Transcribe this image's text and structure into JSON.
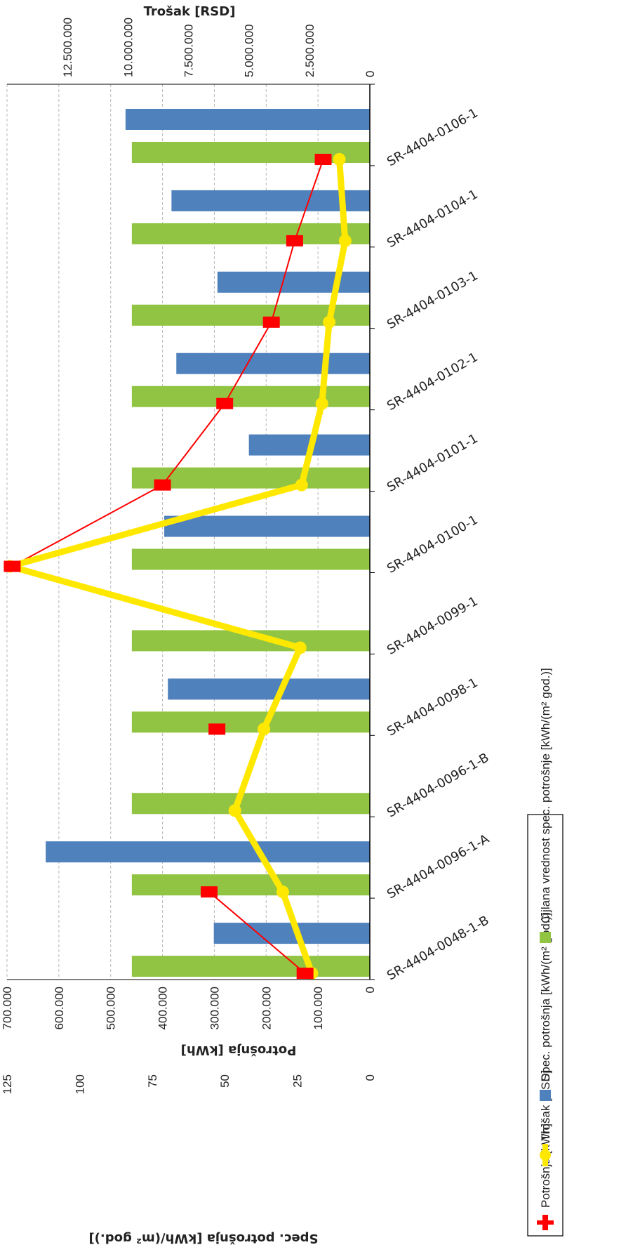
{
  "chart_data": {
    "type": "bar",
    "orientation": "horizontal",
    "axes": {
      "potrosnja": {
        "title": "Potrošnja [kWh]",
        "range": [
          0,
          700000
        ],
        "ticks": [
          "0",
          "100.000",
          "200.000",
          "300.000",
          "400.000",
          "500.000",
          "600.000",
          "700.000"
        ]
      },
      "spec": {
        "title": "Spec. potrošnja [kWh/(m² god.)]",
        "range": [
          0,
          125
        ],
        "ticks": [
          "0",
          "25",
          "50",
          "75",
          "100",
          "125"
        ]
      },
      "trosak": {
        "title": "Trošak [RSD]",
        "range": [
          0,
          15000000
        ],
        "ticks": [
          "0",
          "2.500.000",
          "5.000.000",
          "7.500.000",
          "10.000.000",
          "12.500.000"
        ]
      }
    },
    "categories": [
      "SR-4404-0048-1-B",
      "SR-4404-0096-1-A",
      "SR-4404-0096-1-B",
      "SR-4404-0098-1",
      "SR-4404-0099-1",
      "SR-4404-0100-1",
      "SR-4404-0101-1",
      "SR-4404-0102-1",
      "SR-4404-0103-1",
      "SR-4404-0104-1",
      "SR-4404-0106-1"
    ],
    "series": [
      {
        "name": "Potrošnja [kWh]",
        "kind": "line-marker",
        "axis": "potrosnja",
        "color": "#ff0000",
        "values": [
          125000,
          310000,
          null,
          295000,
          null,
          690000,
          400000,
          280000,
          190000,
          145000,
          90000
        ],
        "connect_gaps": false
      },
      {
        "name": "Trošak [RSD]",
        "kind": "bar",
        "axis": "trosak",
        "color": "#4f81bd",
        "values": [
          6450000,
          13400000,
          null,
          8350000,
          null,
          8500000,
          5000000,
          8000000,
          6300000,
          8200000,
          10100000
        ]
      },
      {
        "name": "Spec. potrošnja [kWh/(m² god.)]",
        "kind": "line-marker",
        "axis": "spec",
        "color": "#ffe800",
        "values": [
          20,
          30,
          46.5,
          36.5,
          24,
          124,
          23.5,
          16.5,
          14,
          8.5,
          10.5
        ],
        "connect_gaps": true
      },
      {
        "name": "Cijlana vrednost spec. potrošnje [kWh/(m² god.)]",
        "kind": "bar",
        "axis": "spec",
        "color": "#92c443",
        "values": [
          82,
          82,
          82,
          82,
          82,
          82,
          82,
          82,
          82,
          82,
          82
        ]
      }
    ],
    "legend": {
      "position": "bottom"
    },
    "grid": true
  }
}
